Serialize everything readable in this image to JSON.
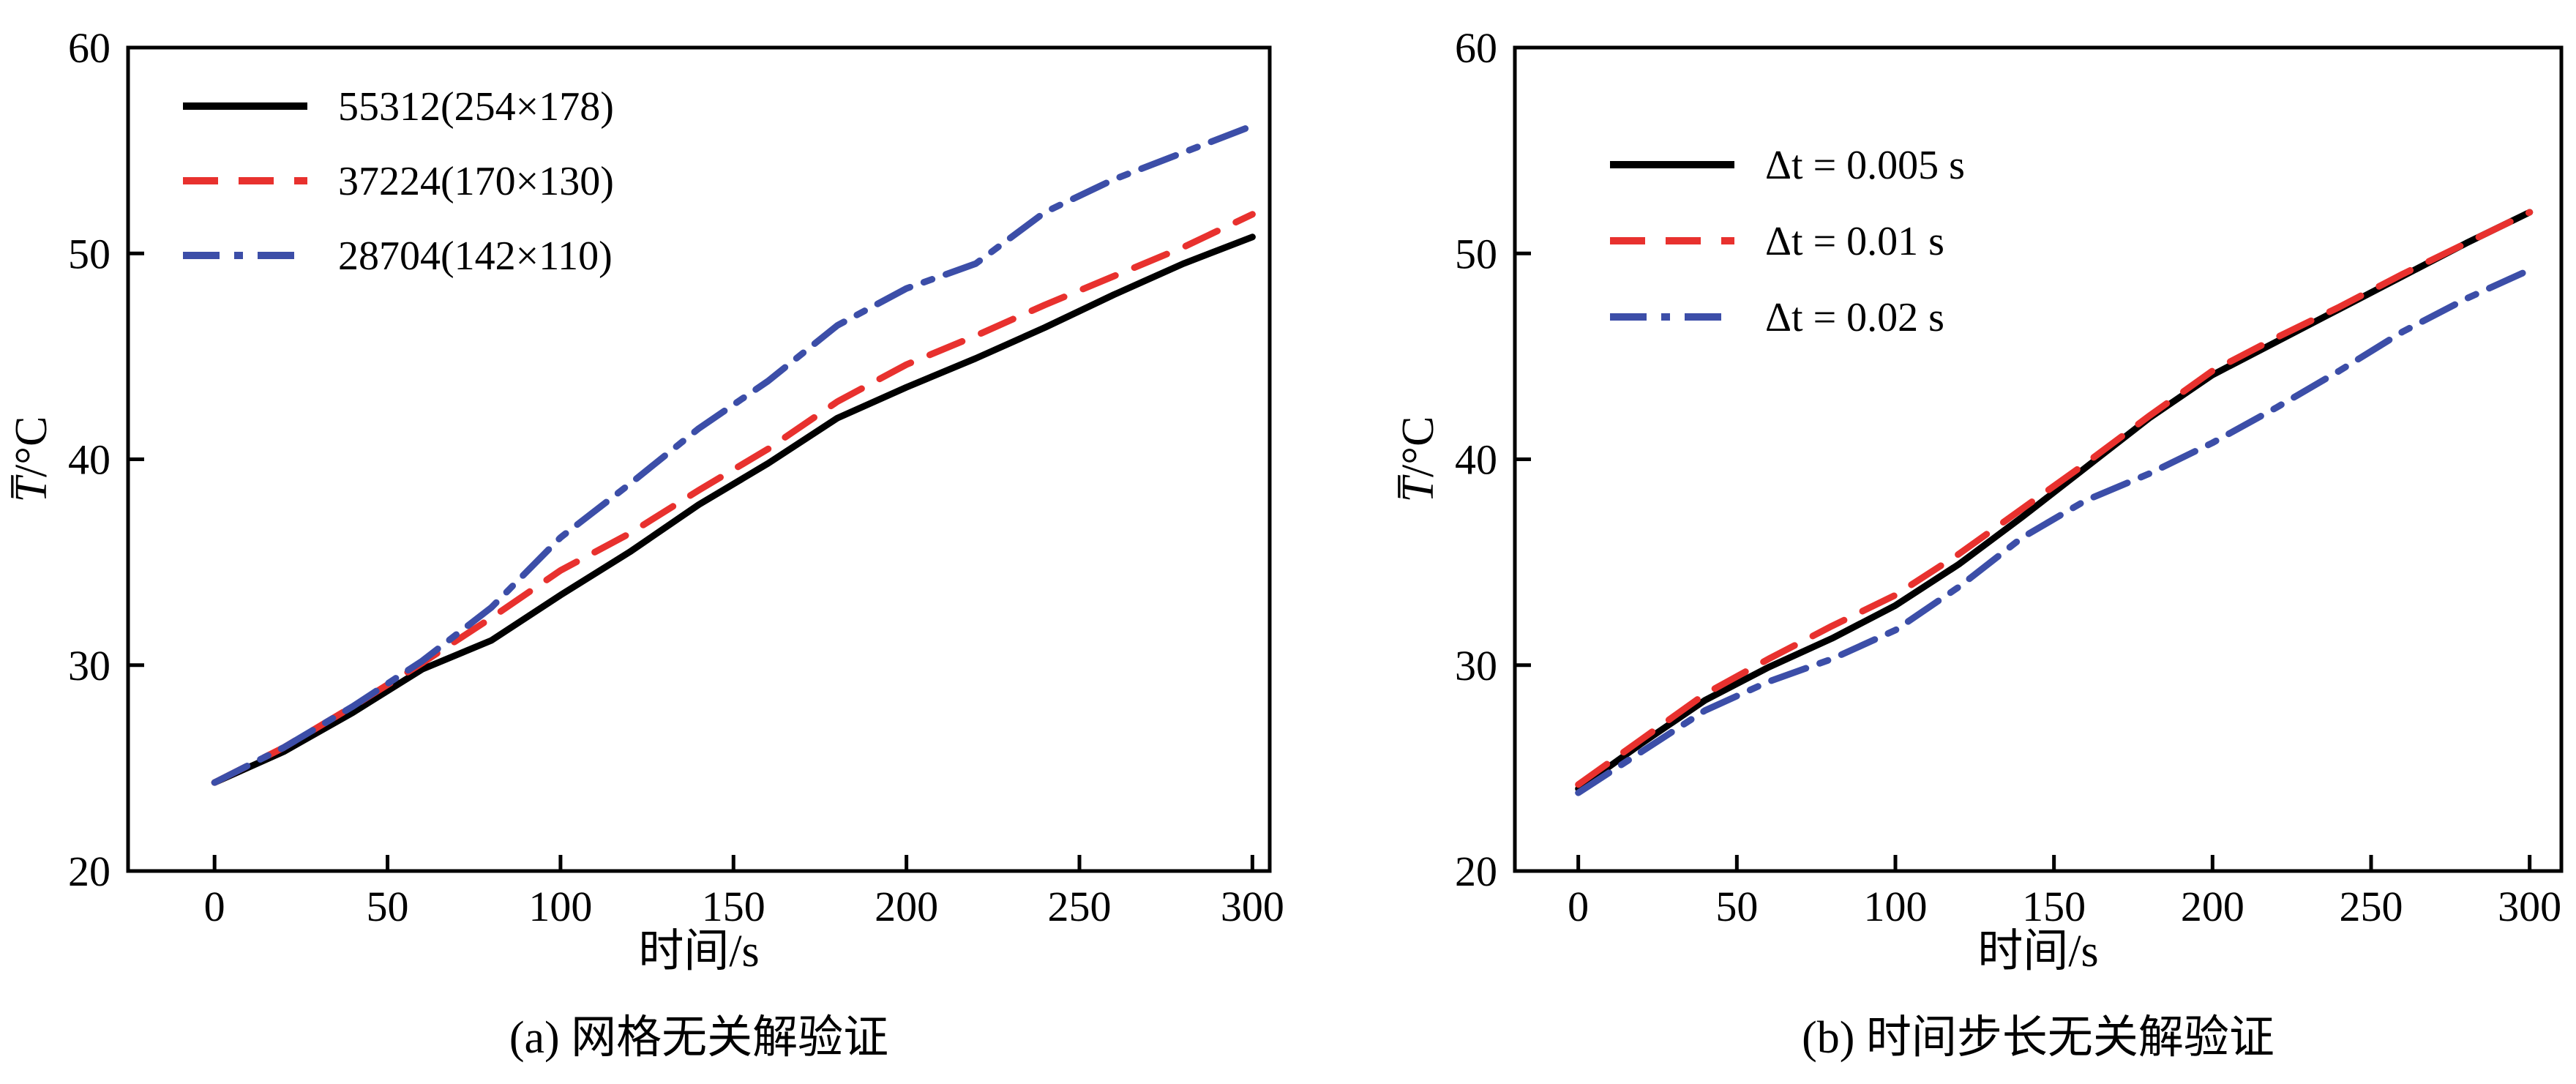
{
  "page": {
    "background_color": "#ffffff",
    "axis_color": "#000000",
    "text_color": "#000000"
  },
  "chart_data": [
    {
      "type": "line",
      "caption": "(a) 网格无关解验证",
      "xlabel": "时间/s",
      "ylabel": "T̅/°C",
      "xlim": [
        -25,
        305
      ],
      "ylim": [
        20,
        60
      ],
      "xticks": [
        0,
        50,
        100,
        150,
        200,
        250,
        300
      ],
      "yticks": [
        20,
        30,
        40,
        50,
        60
      ],
      "grid": false,
      "legend_position": "upper-left-inside",
      "x": [
        0,
        20,
        40,
        60,
        80,
        100,
        120,
        140,
        160,
        180,
        200,
        220,
        240,
        260,
        280,
        300
      ],
      "series": [
        {
          "name": "55312(254×178)",
          "color": "#000000",
          "dash": "solid",
          "values": [
            24.3,
            25.8,
            27.7,
            29.8,
            31.2,
            33.4,
            35.5,
            37.8,
            39.8,
            42.0,
            43.5,
            44.9,
            46.4,
            48.0,
            49.5,
            50.8
          ]
        },
        {
          "name": "37224(170×130)",
          "color": "#e8312e",
          "dash": "dashed",
          "values": [
            24.3,
            26.0,
            28.0,
            30.1,
            32.3,
            34.6,
            36.4,
            38.5,
            40.5,
            42.8,
            44.6,
            46.0,
            47.5,
            48.9,
            50.3,
            51.9
          ]
        },
        {
          "name": "28704(142×110)",
          "color": "#3c4ea8",
          "dash": "dashdot",
          "values": [
            24.3,
            26.0,
            28.0,
            30.2,
            32.8,
            36.2,
            38.8,
            41.5,
            43.8,
            46.5,
            48.3,
            49.5,
            52.0,
            53.6,
            54.9,
            56.2
          ]
        }
      ]
    },
    {
      "type": "line",
      "caption": "(b) 时间步长无关解验证",
      "xlabel": "时间/s",
      "ylabel": "T̅/°C",
      "xlim": [
        -20,
        310
      ],
      "ylim": [
        20,
        60
      ],
      "xticks": [
        0,
        50,
        100,
        150,
        200,
        250,
        300
      ],
      "yticks": [
        20,
        30,
        40,
        50,
        60
      ],
      "grid": false,
      "legend_position": "upper-left-inside",
      "x": [
        0,
        20,
        40,
        60,
        80,
        100,
        120,
        140,
        160,
        180,
        200,
        220,
        240,
        260,
        280,
        300
      ],
      "series": [
        {
          "name": "Δt = 0.005 s",
          "color": "#000000",
          "dash": "solid",
          "values": [
            24.0,
            26.2,
            28.3,
            29.9,
            31.3,
            32.9,
            34.9,
            37.2,
            39.6,
            42.0,
            44.1,
            45.7,
            47.3,
            48.9,
            50.5,
            52.0
          ]
        },
        {
          "name": "Δt = 0.01 s",
          "color": "#e8312e",
          "dash": "dashed",
          "values": [
            24.2,
            26.4,
            28.6,
            30.3,
            31.9,
            33.4,
            35.4,
            37.6,
            39.8,
            42.1,
            44.3,
            45.9,
            47.4,
            49.0,
            50.5,
            52.0
          ]
        },
        {
          "name": "Δt = 0.02 s",
          "color": "#3c4ea8",
          "dash": "dashdot",
          "values": [
            23.8,
            25.8,
            27.8,
            29.2,
            30.3,
            31.7,
            33.8,
            36.2,
            38.0,
            39.3,
            40.8,
            42.5,
            44.3,
            46.2,
            47.8,
            49.2
          ]
        }
      ]
    }
  ]
}
